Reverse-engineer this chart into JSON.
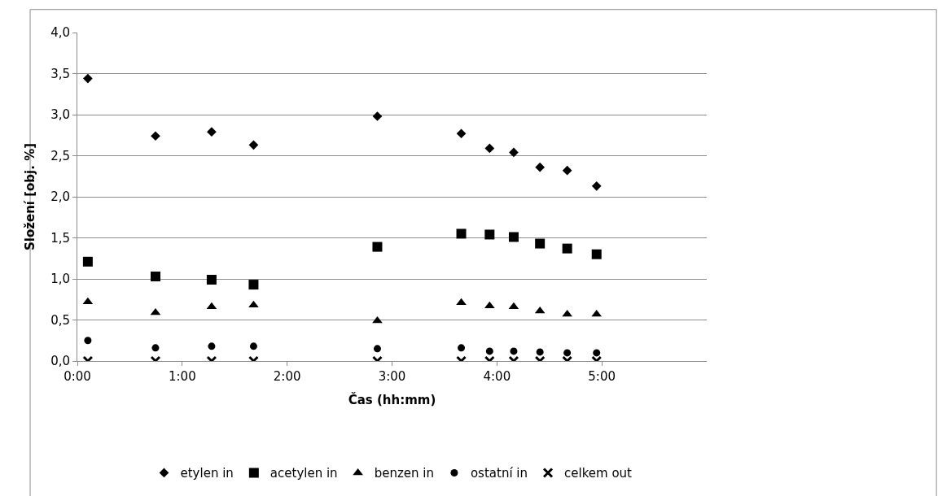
{
  "chart_data": {
    "type": "scatter",
    "xlabel": "Čas (hh:mm)",
    "ylabel": "Složení [obj. %]",
    "x": [
      0.1,
      0.745,
      1.28,
      1.68,
      2.86,
      3.66,
      3.93,
      4.16,
      4.41,
      4.67,
      4.95
    ],
    "series": [
      {
        "name": "etylen in",
        "color": "#000000",
        "marker": "diamond",
        "values": [
          3.44,
          2.74,
          2.79,
          2.63,
          2.98,
          2.77,
          2.59,
          2.54,
          2.36,
          2.32,
          2.13
        ]
      },
      {
        "name": "acetylen in",
        "color": "#000000",
        "marker": "square",
        "values": [
          1.21,
          1.03,
          0.99,
          0.93,
          1.39,
          1.55,
          1.54,
          1.51,
          1.43,
          1.37,
          1.3
        ]
      },
      {
        "name": "benzen in",
        "color": "#000000",
        "marker": "triangle",
        "values": [
          0.72,
          0.59,
          0.66,
          0.68,
          0.49,
          0.71,
          0.67,
          0.66,
          0.61,
          0.57,
          0.57
        ]
      },
      {
        "name": "ostatní in",
        "color": "#000000",
        "marker": "circle",
        "values": [
          0.25,
          0.16,
          0.18,
          0.18,
          0.15,
          0.16,
          0.12,
          0.12,
          0.11,
          0.1,
          0.1
        ]
      },
      {
        "name": "celkem out",
        "color": "#000000",
        "marker": "cross",
        "values": [
          0,
          0,
          0,
          0,
          0,
          0,
          0,
          0,
          0,
          0,
          0
        ]
      }
    ],
    "xlim": [
      0,
      6
    ],
    "xticks": [
      {
        "value": 0,
        "label": "0:00"
      },
      {
        "value": 1,
        "label": "1:00"
      },
      {
        "value": 2,
        "label": "2:00"
      },
      {
        "value": 3,
        "label": "3:00"
      },
      {
        "value": 4,
        "label": "4:00"
      },
      {
        "value": 5,
        "label": "5:00"
      }
    ],
    "ylim": [
      0,
      4
    ],
    "yticks": [
      {
        "value": 0,
        "label": "0,0"
      },
      {
        "value": 0.5,
        "label": "0,5"
      },
      {
        "value": 1,
        "label": "1,0"
      },
      {
        "value": 1.5,
        "label": "1,5"
      },
      {
        "value": 2,
        "label": "2,0"
      },
      {
        "value": 2.5,
        "label": "2,5"
      },
      {
        "value": 3,
        "label": "3,0"
      },
      {
        "value": 3.5,
        "label": "3,5"
      },
      {
        "value": 4,
        "label": "4,0"
      }
    ],
    "grid": "y",
    "legend": "bottom"
  }
}
